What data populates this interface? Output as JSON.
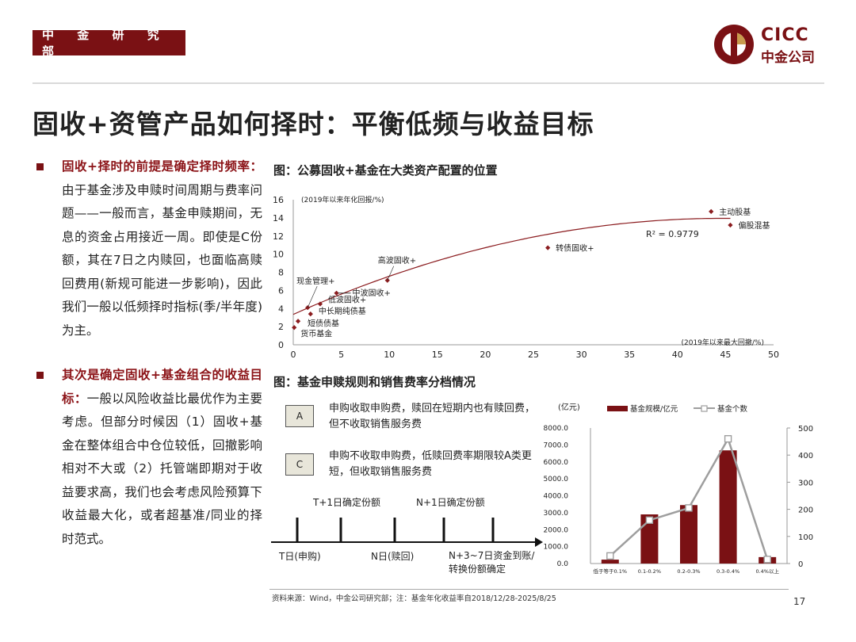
{
  "header": {
    "dept_tag": "中 金 研 究 部",
    "logo_en": "CICC",
    "logo_cn": "中金公司"
  },
  "title": "固收+资管产品如何择时：平衡低频与收益目标",
  "bullets": [
    {
      "highlight": "固收+择时的前提是确定择时频率：",
      "text": "由于基金涉及申赎时间周期与费率问题——一般而言，基金申赎期间，无息的资金占用接近一周。即使是C份额，其在7日之内赎回，也面临高赎回费用(新规可能进一步影响)，因此我们一般以低频择时指标(季/半年度)为主。"
    },
    {
      "highlight": "其次是确定固收+基金组合的收益目标：",
      "text": "一般以风险收益比最优作为主要考虑。但部分时候因（1）固收+基金在整体组合中仓位较低，回撤影响相对不大或（2）托管端即期对于收益要求高，我们也会考虑风险预算下收益最大化，或者超基准/同业的择时范式。"
    }
  ],
  "figure1": {
    "title": "图：公募固收+基金在大类资产配置的位置"
  },
  "figure2": {
    "title": "图：基金申赎规则和销售费率分档情况",
    "share_classes": [
      {
        "label": "A",
        "text": "申购收取申购费，赎回在短期内也有赎回费，但不收取销售服务费"
      },
      {
        "label": "C",
        "text": "申购不收取申购费，低赎回费率期限较A类更短，但收取销售服务费"
      }
    ],
    "timeline": {
      "top_labels": [
        "T+1日确定份额",
        "N+1日确定份额"
      ],
      "bottom_labels": [
        "T日(申购)",
        "N日(赎回)",
        "N+3~7日资金到账/转换份额确定"
      ]
    }
  },
  "chart_data": [
    {
      "type": "scatter",
      "title": "图：公募固收+基金在大类资产配置的位置",
      "ylabel": "(2019年以来年化回报/%)",
      "xlabel": "(2019年以来最大回撤/%)",
      "xlim": [
        0,
        50
      ],
      "ylim": [
        0,
        16
      ],
      "xticks": [
        "0",
        "5",
        "10",
        "15",
        "20",
        "25",
        "30",
        "35",
        "40",
        "45",
        "50"
      ],
      "yticks": [
        "0",
        "2",
        "4",
        "6",
        "8",
        "10",
        "12",
        "14",
        "16"
      ],
      "r2_label": "R² = 0.9779",
      "points": [
        {
          "name": "货币基金",
          "x": 0.1,
          "y": 1.9
        },
        {
          "name": "短债债基",
          "x": 0.5,
          "y": 2.6
        },
        {
          "name": "中长期纯债基",
          "x": 1.8,
          "y": 3.4
        },
        {
          "name": "现金管理+",
          "x": 1.5,
          "y": 4.1
        },
        {
          "name": "低波固收+",
          "x": 2.8,
          "y": 4.5
        },
        {
          "name": "中波固收+",
          "x": 4.5,
          "y": 5.7
        },
        {
          "name": "高波固收+",
          "x": 9.8,
          "y": 7.1
        },
        {
          "name": "转债固收+",
          "x": 26.5,
          "y": 10.7
        },
        {
          "name": "主动股基",
          "x": 43.5,
          "y": 14.7
        },
        {
          "name": "偏股混基",
          "x": 45.5,
          "y": 13.2
        }
      ],
      "trendline": {
        "type": "polynomial",
        "a": -0.0053,
        "b": 0.474,
        "c": 3.35
      }
    },
    {
      "type": "bar",
      "title": "基金申赎规则和销售费率分档情况",
      "unit_label": "(亿元)",
      "categories": [
        "低于等于0.1%",
        "0.1-0.2%",
        "0.2-0.3%",
        "0.3-0.4%",
        "0.4%以上"
      ],
      "series": [
        {
          "name": "基金规模/亿元",
          "axis": "left",
          "style": "bar",
          "values": [
            230,
            2900,
            3450,
            6680,
            380
          ]
        },
        {
          "name": "基金个数",
          "axis": "right",
          "style": "line",
          "values": [
            28,
            160,
            205,
            460,
            15
          ]
        }
      ],
      "left_axis": {
        "range": [
          0,
          8000
        ],
        "ticks": [
          "0.0",
          "1000.0",
          "2000.0",
          "3000.0",
          "4000.0",
          "5000.0",
          "6000.0",
          "7000.0",
          "8000.0"
        ]
      },
      "right_axis": {
        "range": [
          0,
          500
        ],
        "ticks": [
          "0",
          "100",
          "200",
          "300",
          "400",
          "500"
        ]
      }
    }
  ],
  "footer": {
    "source": "资料来源：Wind，中金公司研究部；注：基金年化收益率自2018/12/28-2025/8/25",
    "page_number": "17"
  },
  "colors": {
    "brand": "#7a1114",
    "bar": "#7a1114",
    "line": "#9e9e9e",
    "trend": "#8b1c1f"
  }
}
